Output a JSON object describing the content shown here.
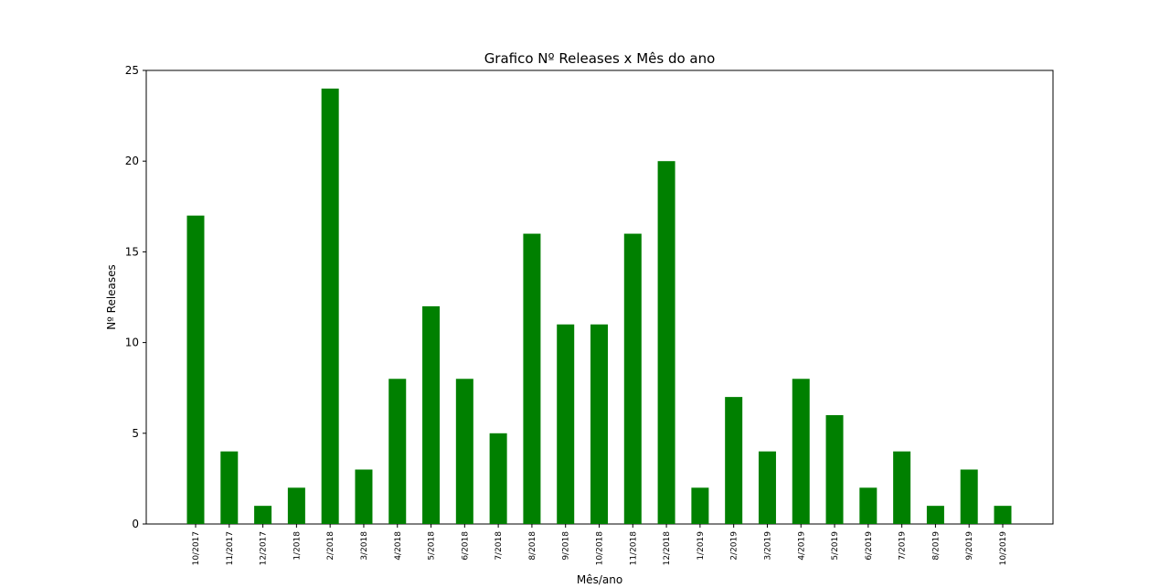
{
  "chart_data": {
    "type": "bar",
    "title": "Grafico Nº Releases x Mês do ano",
    "xlabel": "Mês/ano",
    "ylabel": "Nº Releases",
    "categories": [
      "10/2017",
      "11/2017",
      "12/2017",
      "1/2018",
      "2/2018",
      "3/2018",
      "4/2018",
      "5/2018",
      "6/2018",
      "7/2018",
      "8/2018",
      "9/2018",
      "10/2018",
      "11/2018",
      "12/2018",
      "1/2019",
      "2/2019",
      "3/2019",
      "4/2019",
      "5/2019",
      "6/2019",
      "7/2019",
      "8/2019",
      "9/2019",
      "10/2019"
    ],
    "values": [
      17,
      4,
      1,
      2,
      24,
      3,
      8,
      12,
      8,
      5,
      16,
      11,
      11,
      16,
      20,
      2,
      7,
      4,
      8,
      6,
      2,
      4,
      1,
      3,
      1
    ],
    "ylim": [
      0,
      25
    ],
    "yticks": [
      0,
      5,
      10,
      15,
      20,
      25
    ],
    "bar_color": "#008000",
    "grid": false,
    "legend": "none"
  }
}
